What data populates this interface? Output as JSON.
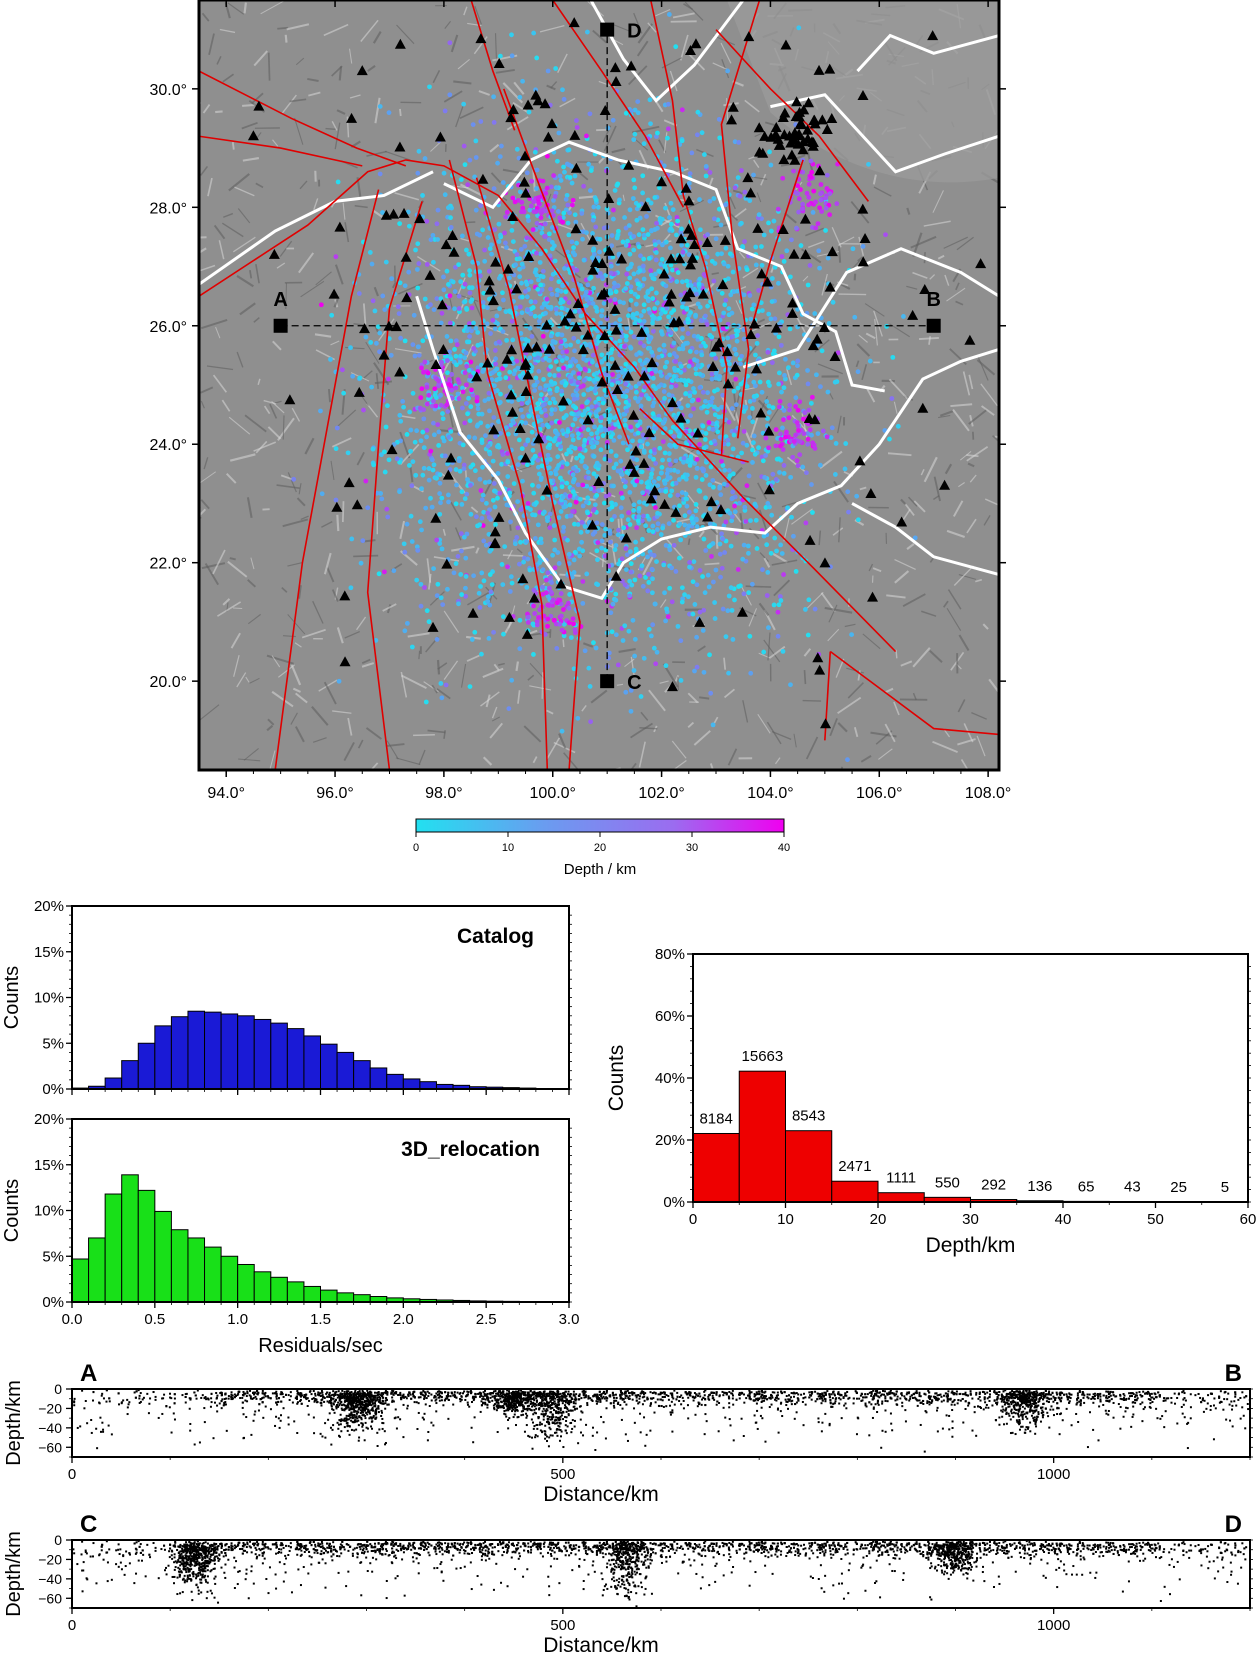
{
  "map": {
    "x_ticks": [
      "94.0°",
      "96.0°",
      "98.0°",
      "100.0°",
      "102.0°",
      "104.0°",
      "106.0°",
      "108.0°"
    ],
    "x_tick_values": [
      94,
      96,
      98,
      100,
      102,
      104,
      106,
      108
    ],
    "y_ticks": [
      "20.0°",
      "22.0°",
      "24.0°",
      "26.0°",
      "28.0°",
      "30.0°"
    ],
    "y_tick_values": [
      20,
      22,
      24,
      26,
      28,
      30
    ],
    "lon_range": [
      93.5,
      108.2
    ],
    "lat_range": [
      18.5,
      31.5
    ],
    "profile_points": [
      {
        "label": "A",
        "lon": 95.0,
        "lat": 26.0
      },
      {
        "label": "B",
        "lon": 107.0,
        "lat": 26.0
      },
      {
        "label": "C",
        "lon": 101.0,
        "lat": 20.0
      },
      {
        "label": "D",
        "lon": 101.0,
        "lat": 31.0
      }
    ],
    "colors": {
      "fault": "#e00000",
      "border": "#ffffff",
      "shallow": "#22e0f0",
      "deep": "#f000f0",
      "station": "#000000"
    },
    "legend": {
      "symbols": "black triangles = stations, colored dots = earthquakes"
    }
  },
  "colorbar": {
    "ticks": [
      "0",
      "10",
      "20",
      "30",
      "40"
    ],
    "tick_values": [
      0,
      10,
      20,
      30,
      40
    ],
    "label": "Depth / km",
    "colors": [
      "#22e0f0",
      "#6a9cf0",
      "#9b6cf0",
      "#f000f0"
    ]
  },
  "chart_data": [
    {
      "type": "bar",
      "name": "Catalog",
      "title": "Catalog",
      "ylabel": "Counts",
      "xlim": [
        0,
        3.0
      ],
      "ylim": [
        0,
        20
      ],
      "bin_width": 0.1,
      "y_ticks": [
        "0%",
        "5%",
        "10%",
        "15%",
        "20%"
      ],
      "color": "#1a1ad6",
      "values": [
        0.1,
        0.3,
        1.2,
        3.1,
        5.0,
        6.9,
        7.9,
        8.5,
        8.4,
        8.2,
        8.0,
        7.6,
        7.2,
        6.6,
        5.8,
        4.9,
        4.0,
        3.1,
        2.3,
        1.6,
        1.1,
        0.8,
        0.5,
        0.4,
        0.25,
        0.2,
        0.15,
        0.1,
        0.05,
        0.0
      ]
    },
    {
      "type": "bar",
      "name": "3D_relocation",
      "title": "3D_relocation",
      "ylabel": "Counts",
      "xlabel": "Residuals/sec",
      "xlim": [
        0,
        3.0
      ],
      "ylim": [
        0,
        20
      ],
      "bin_width": 0.1,
      "x_ticks": [
        "0.0",
        "0.5",
        "1.0",
        "1.5",
        "2.0",
        "2.5",
        "3.0"
      ],
      "y_ticks": [
        "0%",
        "5%",
        "10%",
        "15%",
        "20%"
      ],
      "color": "#18e018",
      "values": [
        4.7,
        7.0,
        11.8,
        13.9,
        12.2,
        9.9,
        7.9,
        7.0,
        6.0,
        5.0,
        4.1,
        3.3,
        2.7,
        2.2,
        1.7,
        1.3,
        1.0,
        0.8,
        0.6,
        0.45,
        0.35,
        0.28,
        0.22,
        0.17,
        0.12,
        0.09,
        0.07,
        0.05,
        0.03,
        0.02
      ]
    },
    {
      "type": "bar",
      "ylabel": "Counts",
      "xlabel": "Depth/km",
      "xlim": [
        0,
        60
      ],
      "ylim": [
        0,
        80
      ],
      "bin_width": 5,
      "x_ticks": [
        "0",
        "10",
        "20",
        "30",
        "40",
        "50",
        "60"
      ],
      "y_ticks": [
        "0%",
        "20%",
        "40%",
        "60%",
        "80%"
      ],
      "color": "#ee0000",
      "counts": [
        "8184",
        "15663",
        "8543",
        "2471",
        "1111",
        "550",
        "292",
        "136",
        "65",
        "43",
        "25",
        "5"
      ],
      "values": [
        22.1,
        42.2,
        23.0,
        6.7,
        3.0,
        1.5,
        0.8,
        0.4,
        0.2,
        0.1,
        0.07,
        0.01
      ]
    },
    {
      "type": "scatter",
      "name": "A-B profile",
      "start_label": "A",
      "end_label": "B",
      "xlabel": "Distance/km",
      "ylabel": "Depth/km",
      "xlim": [
        0,
        1200
      ],
      "ylim": [
        -70,
        0
      ],
      "x_ticks": [
        "0",
        "500",
        "1000"
      ],
      "y_ticks": [
        "0",
        "−20",
        "−40",
        "−60"
      ],
      "clusters": [
        {
          "x": 290,
          "depth": 30,
          "weight": 3
        },
        {
          "x": 450,
          "depth": 20,
          "weight": 2
        },
        {
          "x": 490,
          "depth": 40,
          "weight": 2
        },
        {
          "x": 970,
          "depth": 30,
          "weight": 2
        }
      ]
    },
    {
      "type": "scatter",
      "name": "C-D profile",
      "start_label": "C",
      "end_label": "D",
      "xlabel": "Distance/km",
      "ylabel": "Depth/km",
      "xlim": [
        0,
        1200
      ],
      "ylim": [
        -70,
        0
      ],
      "x_ticks": [
        "0",
        "500",
        "1000"
      ],
      "y_ticks": [
        "0",
        "−20",
        "−40",
        "−60"
      ],
      "clusters": [
        {
          "x": 125,
          "depth": 35,
          "weight": 3
        },
        {
          "x": 565,
          "depth": 40,
          "weight": 2
        },
        {
          "x": 900,
          "depth": 25,
          "weight": 2
        }
      ]
    }
  ]
}
